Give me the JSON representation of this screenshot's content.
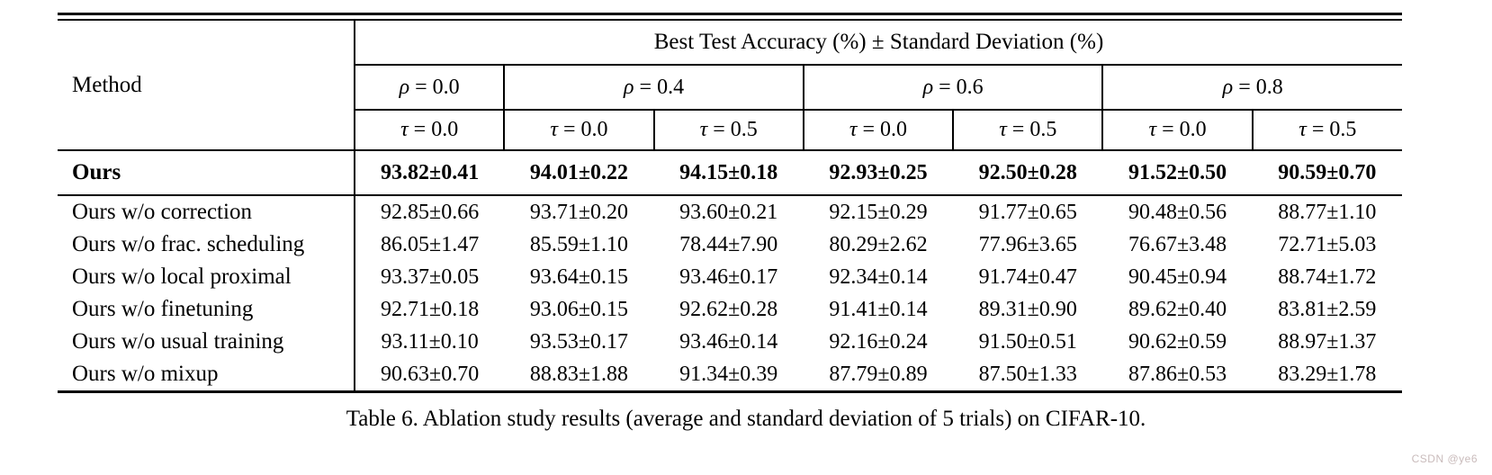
{
  "table": {
    "method_label": "Method",
    "top_header": "Best Test Accuracy (%) ± Standard Deviation (%)",
    "rho_groups": [
      "ρ = 0.0",
      "ρ = 0.4",
      "ρ = 0.6",
      "ρ = 0.8"
    ],
    "tau_labels": [
      "τ = 0.0",
      "τ = 0.0",
      "τ = 0.5",
      "τ = 0.0",
      "τ = 0.5",
      "τ = 0.0",
      "τ = 0.5"
    ],
    "highlight_row": {
      "method": "Ours",
      "values": [
        "93.82±0.41",
        "94.01±0.22",
        "94.15±0.18",
        "92.93±0.25",
        "92.50±0.28",
        "91.52±0.50",
        "90.59±0.70"
      ]
    },
    "rows": [
      {
        "method": "Ours w/o correction",
        "values": [
          "92.85±0.66",
          "93.71±0.20",
          "93.60±0.21",
          "92.15±0.29",
          "91.77±0.65",
          "90.48±0.56",
          "88.77±1.10"
        ]
      },
      {
        "method": "Ours w/o frac. scheduling",
        "values": [
          "86.05±1.47",
          "85.59±1.10",
          "78.44±7.90",
          "80.29±2.62",
          "77.96±3.65",
          "76.67±3.48",
          "72.71±5.03"
        ]
      },
      {
        "method": "Ours w/o local proximal",
        "values": [
          "93.37±0.05",
          "93.64±0.15",
          "93.46±0.17",
          "92.34±0.14",
          "91.74±0.47",
          "90.45±0.94",
          "88.74±1.72"
        ]
      },
      {
        "method": "Ours w/o finetuning",
        "values": [
          "92.71±0.18",
          "93.06±0.15",
          "92.62±0.28",
          "91.41±0.14",
          "89.31±0.90",
          "89.62±0.40",
          "83.81±2.59"
        ]
      },
      {
        "method": "Ours w/o usual training",
        "values": [
          "93.11±0.10",
          "93.53±0.17",
          "93.46±0.14",
          "92.16±0.24",
          "91.50±0.51",
          "90.62±0.59",
          "88.97±1.37"
        ]
      },
      {
        "method": "Ours w/o mixup",
        "values": [
          "90.63±0.70",
          "88.83±1.88",
          "91.34±0.39",
          "87.79±0.89",
          "87.50±1.33",
          "87.86±0.53",
          "83.29±1.78"
        ]
      }
    ]
  },
  "caption": "Table 6. Ablation study results (average and standard deviation of 5 trials) on CIFAR-10.",
  "watermark": {
    "text": "CSDN @ye6",
    "color": "#c9bbbb"
  },
  "colors": {
    "text": "#000000",
    "background": "#ffffff"
  }
}
